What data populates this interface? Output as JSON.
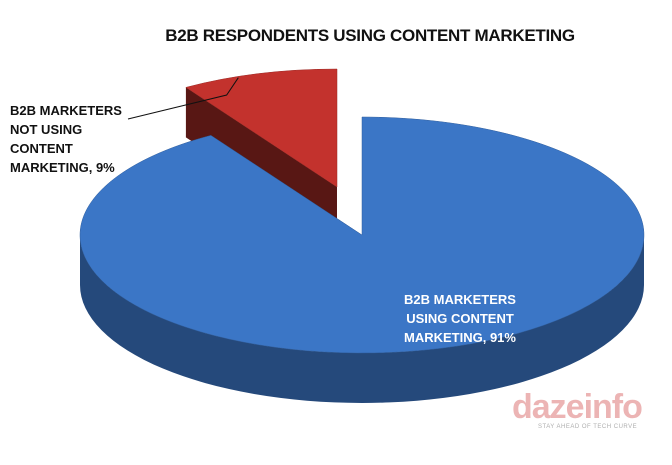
{
  "chart_data": {
    "type": "pie",
    "title": "B2B RESPONDENTS USING CONTENT MARKETING",
    "values": [
      91,
      9
    ],
    "value_labels": [
      "B2B MARKETERS USING CONTENT MARKETING, 91%",
      "B2B MARKETERS NOT USING CONTENT MARKETING, 9%"
    ],
    "colors": [
      "#3b76c6",
      "#c3322d"
    ],
    "exploded": [
      false,
      true
    ],
    "watermark": "dazeinfo",
    "tagline": "STAY AHEAD OF TECH CURVE"
  }
}
